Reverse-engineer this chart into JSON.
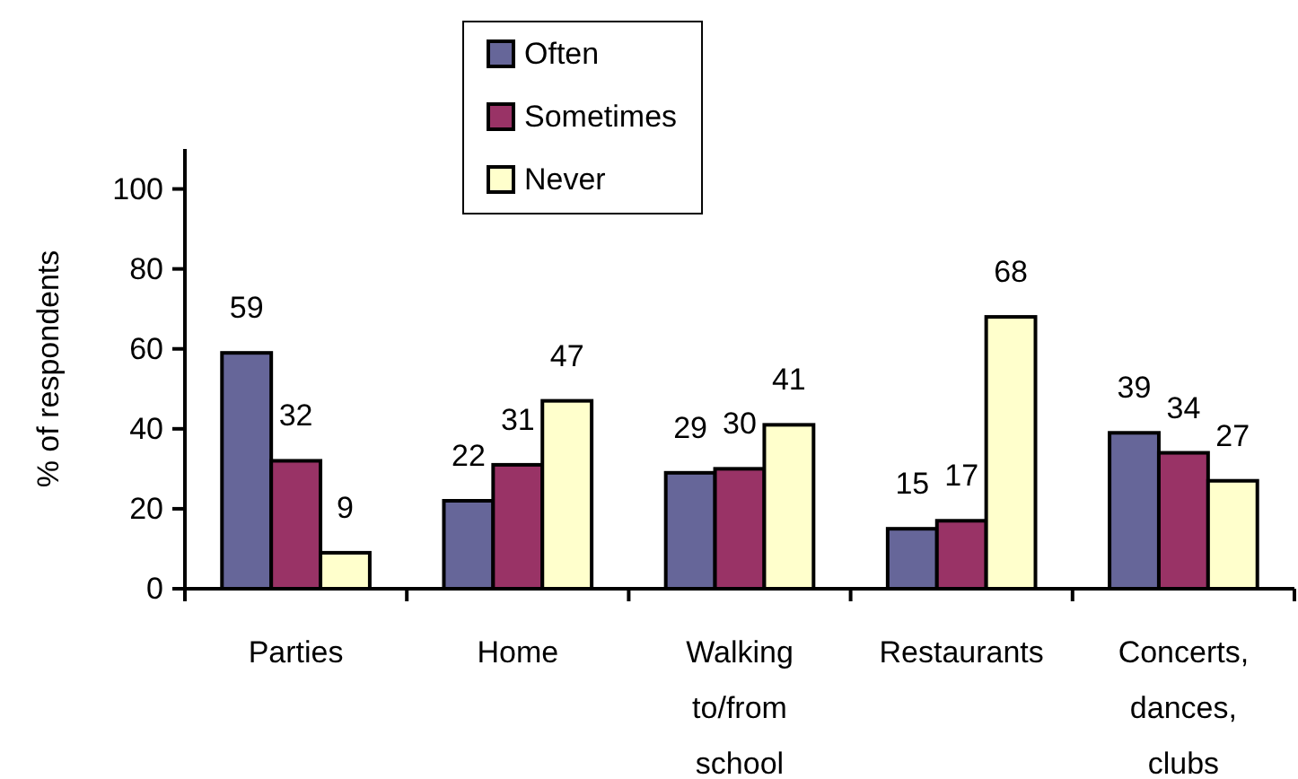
{
  "chart_data": {
    "type": "bar",
    "ylabel": "% of respondents",
    "categories": [
      "Parties",
      "Home",
      "Walking to/from school",
      "Restaurants",
      "Concerts, dances, clubs"
    ],
    "series": [
      {
        "name": "Often",
        "color": "#666699",
        "values": [
          59,
          22,
          29,
          15,
          39
        ]
      },
      {
        "name": "Sometimes",
        "color": "#993366",
        "values": [
          32,
          31,
          30,
          17,
          34
        ]
      },
      {
        "name": "Never",
        "color": "#ffffcc",
        "values": [
          9,
          47,
          41,
          68,
          27
        ]
      }
    ],
    "ylim": [
      0,
      110
    ],
    "yticks": [
      0,
      20,
      40,
      60,
      80,
      100
    ],
    "data_labels": true,
    "legend": "top",
    "grid": false
  }
}
